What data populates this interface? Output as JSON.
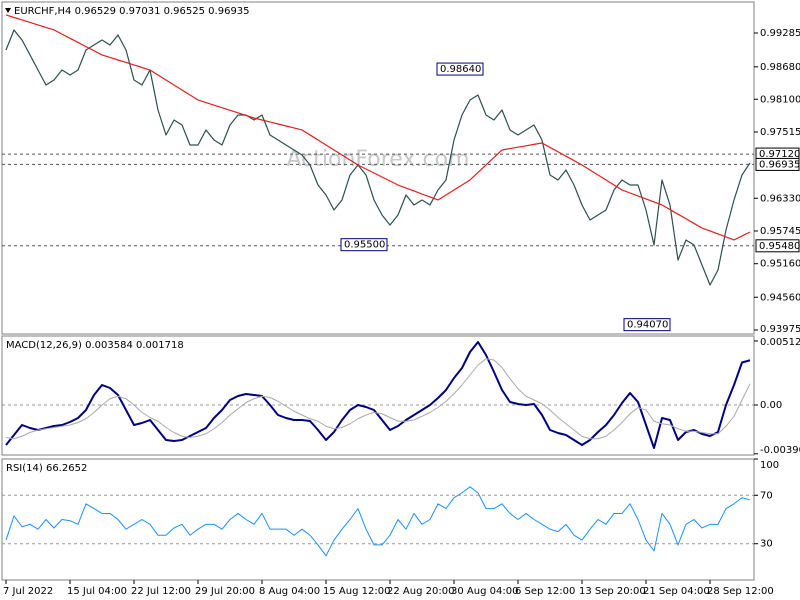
{
  "chart_data": [
    {
      "type": "line",
      "title": "EURCHF,H4  0.96529 0.97031 0.96525 0.96935",
      "watermark": "ActionForex.com",
      "ylim": [
        0.93903,
        0.99839
      ],
      "yticks": [
        0.99285,
        {
          "value": 0.9868,
          "label": "0.98680"
        },
        {
          "value": 0.981,
          "label": "0.98100"
        },
        0.97515,
        {
          "value": 0.9633,
          "label": "0.96330"
        },
        0.95745,
        {
          "value": 0.9516,
          "label": "0.95160"
        },
        {
          "value": 0.9456,
          "label": "0.94560"
        },
        0.93975
      ],
      "hlines": [
        {
          "value": 0.9712,
          "label": "0.97120"
        },
        {
          "value": 0.96935,
          "label": "0.96935"
        },
        {
          "value": 0.9548,
          "label": "0.95480"
        }
      ],
      "annotations": [
        {
          "value": 0.9864,
          "label": "0.98640"
        },
        {
          "value": 0.955,
          "label": "0.95500"
        },
        {
          "value": 0.9407,
          "label": "0.94070"
        }
      ],
      "series": [
        {
          "color": "#2f4f4f",
          "values": [
            0.98981,
            0.99339,
            0.9916,
            0.98892,
            0.98623,
            0.98355,
            0.98445,
            0.98623,
            0.98534,
            0.98623,
            0.98981,
            0.9907,
            0.9916,
            0.9907,
            0.99249,
            0.98981,
            0.98445,
            0.98355,
            0.98623,
            0.97908,
            0.97461,
            0.97729,
            0.9764,
            0.97282,
            0.97282,
            0.97551,
            0.97372,
            0.97282,
            0.9764,
            0.97819,
            0.97819,
            0.97729,
            0.97819,
            0.97461,
            0.97372,
            0.97282,
            0.97193,
            0.97104,
            0.96925,
            0.96567,
            0.96388,
            0.9612,
            0.96299,
            0.96746,
            0.96925,
            0.96746,
            0.96299,
            0.96031,
            0.95852,
            0.96031,
            0.96388,
            0.9621,
            0.96299,
            0.9621,
            0.96478,
            0.96657,
            0.97372,
            0.97819,
            0.98087,
            0.98176,
            0.97819,
            0.97729,
            0.97908,
            0.97551,
            0.97461,
            0.97551,
            0.9764,
            0.97372,
            0.96746,
            0.96657,
            0.96835,
            0.96567,
            0.9621,
            0.95941,
            0.96031,
            0.9612,
            0.96478,
            0.96657,
            0.96567,
            0.96567,
            0.9612,
            0.95494,
            0.96657,
            0.9621,
            0.95226,
            0.95584,
            0.95494,
            0.95137,
            0.94779,
            0.95047,
            0.95763,
            0.96299,
            0.96746,
            0.96961
          ]
        },
        {
          "color": "#e02020",
          "values": [
            0.99607,
            0.99562,
            0.99518,
            0.99473,
            0.99428,
            0.99384,
            0.99339,
            0.99265,
            0.9919,
            0.99116,
            0.99041,
            0.98967,
            0.98892,
            0.98847,
            0.98802,
            0.98758,
            0.98713,
            0.98668,
            0.98623,
            0.98534,
            0.98444,
            0.98355,
            0.98266,
            0.98176,
            0.98087,
            0.98041,
            0.97995,
            0.97949,
            0.97903,
            0.97857,
            0.97811,
            0.97765,
            0.97729,
            0.97694,
            0.97658,
            0.97622,
            0.97587,
            0.97551,
            0.97462,
            0.97372,
            0.97283,
            0.97193,
            0.97104,
            0.97014,
            0.96925,
            0.96853,
            0.96782,
            0.9671,
            0.96639,
            0.96567,
            0.96513,
            0.9646,
            0.96406,
            0.96353,
            0.96299,
            0.96389,
            0.96478,
            0.96568,
            0.96657,
            0.96791,
            0.96925,
            0.97059,
            0.97193,
            0.97218,
            0.97243,
            0.97268,
            0.97293,
            0.97318,
            0.97239,
            0.97161,
            0.97082,
            0.97004,
            0.96925,
            0.96836,
            0.96746,
            0.96657,
            0.96567,
            0.96478,
            0.96424,
            0.96371,
            0.96317,
            0.96264,
            0.9621,
            0.96128,
            0.96045,
            0.95963,
            0.9588,
            0.95798,
            0.95745,
            0.95691,
            0.95638,
            0.95584,
            0.95656,
            0.95727
          ]
        }
      ]
    },
    {
      "type": "line",
      "title": "MACD(12,26,9) 0.003584 0.001718",
      "ylim": [
        -0.004,
        0.00552
      ],
      "yticks": [
        0.005122,
        {
          "value": 0,
          "label": "0.00"
        },
        -0.003905
      ],
      "levels": [
        0
      ],
      "series": [
        {
          "color": "#000080",
          "width": 2,
          "values": [
            -0.0032,
            -0.0024,
            -0.0016,
            -0.00184,
            -0.002,
            -0.00184,
            -0.00168,
            -0.0016,
            -0.00136,
            -0.00104,
            -0.0004,
            0.0008,
            0.0016,
            0.00136,
            0.0008,
            -0.0004,
            -0.0016,
            -0.00144,
            -0.0012,
            -0.002,
            -0.0028,
            -0.00288,
            -0.0028,
            -0.00248,
            -0.00216,
            -0.00184,
            -0.00104,
            -0.0004,
            0.0004,
            0.00072,
            0.00088,
            0.0008,
            0.00072,
            0,
            -0.0008,
            -0.00104,
            -0.0012,
            -0.0012,
            -0.00128,
            -0.002,
            -0.0028,
            -0.00216,
            -0.0012,
            -0.0004,
            0,
            -0.00016,
            -0.0004,
            -0.0012,
            -0.002,
            -0.00168,
            -0.0012,
            -0.0008,
            -0.0004,
            0,
            0.00056,
            0.0012,
            0.00216,
            0.00296,
            0.00424,
            0.00504,
            0.004,
            0.00264,
            0.0012,
            0.00024,
            8e-05,
            0,
            8e-05,
            -0.0008,
            -0.002,
            -0.00224,
            -0.0024,
            -0.0028,
            -0.0032,
            -0.0028,
            -0.00216,
            -0.0016,
            -0.0008,
            0.00016,
            0.00096,
            0.00024,
            -0.0016,
            -0.00344,
            -0.00104,
            -0.0012,
            -0.0028,
            -0.00216,
            -0.002,
            -0.00232,
            -0.00248,
            -0.00216,
            0,
            0.0016,
            0.0034,
            0.00358
          ]
        },
        {
          "color": "#a9a9a9",
          "width": 1,
          "values": [
            -0.0026,
            -0.0027,
            -0.0025,
            -0.0022,
            -0.002,
            -0.0019,
            -0.0018,
            -0.0017,
            -0.0016,
            -0.0014,
            -0.0011,
            -0.0006,
            0,
            0.0005,
            0.0007,
            0.0005,
            0,
            -0.0006,
            -0.001,
            -0.0013,
            -0.0018,
            -0.0022,
            -0.0025,
            -0.0026,
            -0.0025,
            -0.0023,
            -0.0019,
            -0.0014,
            -0.0008,
            -0.0003,
            0.0002,
            0.0005,
            0.0007,
            0.0006,
            0.0003,
            -0.0001,
            -0.0005,
            -0.0008,
            -0.0011,
            -0.0013,
            -0.0017,
            -0.0019,
            -0.0018,
            -0.0015,
            -0.0011,
            -0.0008,
            -0.0006,
            -0.0007,
            -0.001,
            -0.0013,
            -0.0013,
            -0.0012,
            -0.0009,
            -0.0006,
            -0.0002,
            0.0003,
            0.0009,
            0.0016,
            0.0024,
            0.0032,
            0.0037,
            0.0036,
            0.003,
            0.0021,
            0.0013,
            0.0007,
            0.0004,
            0.0001,
            -0.0004,
            -0.001,
            -0.0015,
            -0.002,
            -0.0025,
            -0.0027,
            -0.0027,
            -0.0025,
            -0.002,
            -0.0014,
            -0.0007,
            -0.0002,
            -0.0004,
            -0.0013,
            -0.0015,
            -0.0016,
            -0.0019,
            -0.0021,
            -0.0021,
            -0.0022,
            -0.0023,
            -0.0023,
            -0.0017,
            -0.0009,
            0.0004,
            0.0017
          ]
        }
      ]
    },
    {
      "type": "line",
      "title": "RSI(14) 66.2652",
      "ylim": [
        0,
        100
      ],
      "yticks": [
        100,
        70,
        30
      ],
      "levels": [
        70,
        30
      ],
      "categories": [
        "7 Jul 2022",
        null,
        null,
        null,
        null,
        null,
        null,
        null,
        "15 Jul 04:00",
        null,
        null,
        null,
        null,
        null,
        null,
        null,
        "22 Jul 12:00",
        null,
        null,
        null,
        null,
        null,
        null,
        null,
        "29 Jul 20:00",
        null,
        null,
        null,
        null,
        null,
        null,
        null,
        "8 Aug 04:00",
        null,
        null,
        null,
        null,
        null,
        null,
        null,
        "15 Aug 12:00",
        null,
        null,
        null,
        null,
        null,
        null,
        null,
        "22 Aug 20:00",
        null,
        null,
        null,
        null,
        null,
        null,
        null,
        "30 Aug 04:00",
        null,
        null,
        null,
        null,
        null,
        null,
        null,
        "6 Sep 12:00",
        null,
        null,
        null,
        null,
        null,
        null,
        null,
        "13 Sep 20:00",
        null,
        null,
        null,
        null,
        null,
        null,
        null,
        "21 Sep 04:00",
        null,
        null,
        null,
        null,
        null,
        null,
        null,
        "28 Sep 12:00",
        null,
        null,
        null,
        null,
        null
      ],
      "series": [
        {
          "color": "#1e90ff",
          "width": 1,
          "values": [
            33,
            53,
            44,
            46,
            42,
            50,
            43,
            50,
            49,
            46,
            63,
            59,
            55,
            55,
            50,
            42,
            46,
            50,
            46,
            37,
            37,
            43,
            46,
            37,
            42,
            46,
            46,
            42,
            50,
            55,
            50,
            46,
            55,
            42,
            42,
            42,
            37,
            42,
            37,
            29,
            20,
            33,
            42,
            50,
            59,
            42,
            29,
            29,
            37,
            50,
            42,
            55,
            46,
            50,
            63,
            59,
            68,
            72,
            77,
            72,
            59,
            59,
            63,
            55,
            50,
            55,
            50,
            46,
            42,
            40,
            46,
            37,
            33,
            42,
            50,
            46,
            55,
            55,
            63,
            50,
            33,
            24,
            55,
            46,
            29,
            46,
            50,
            43,
            46,
            46,
            59,
            63,
            68,
            66.2652
          ]
        }
      ]
    }
  ]
}
